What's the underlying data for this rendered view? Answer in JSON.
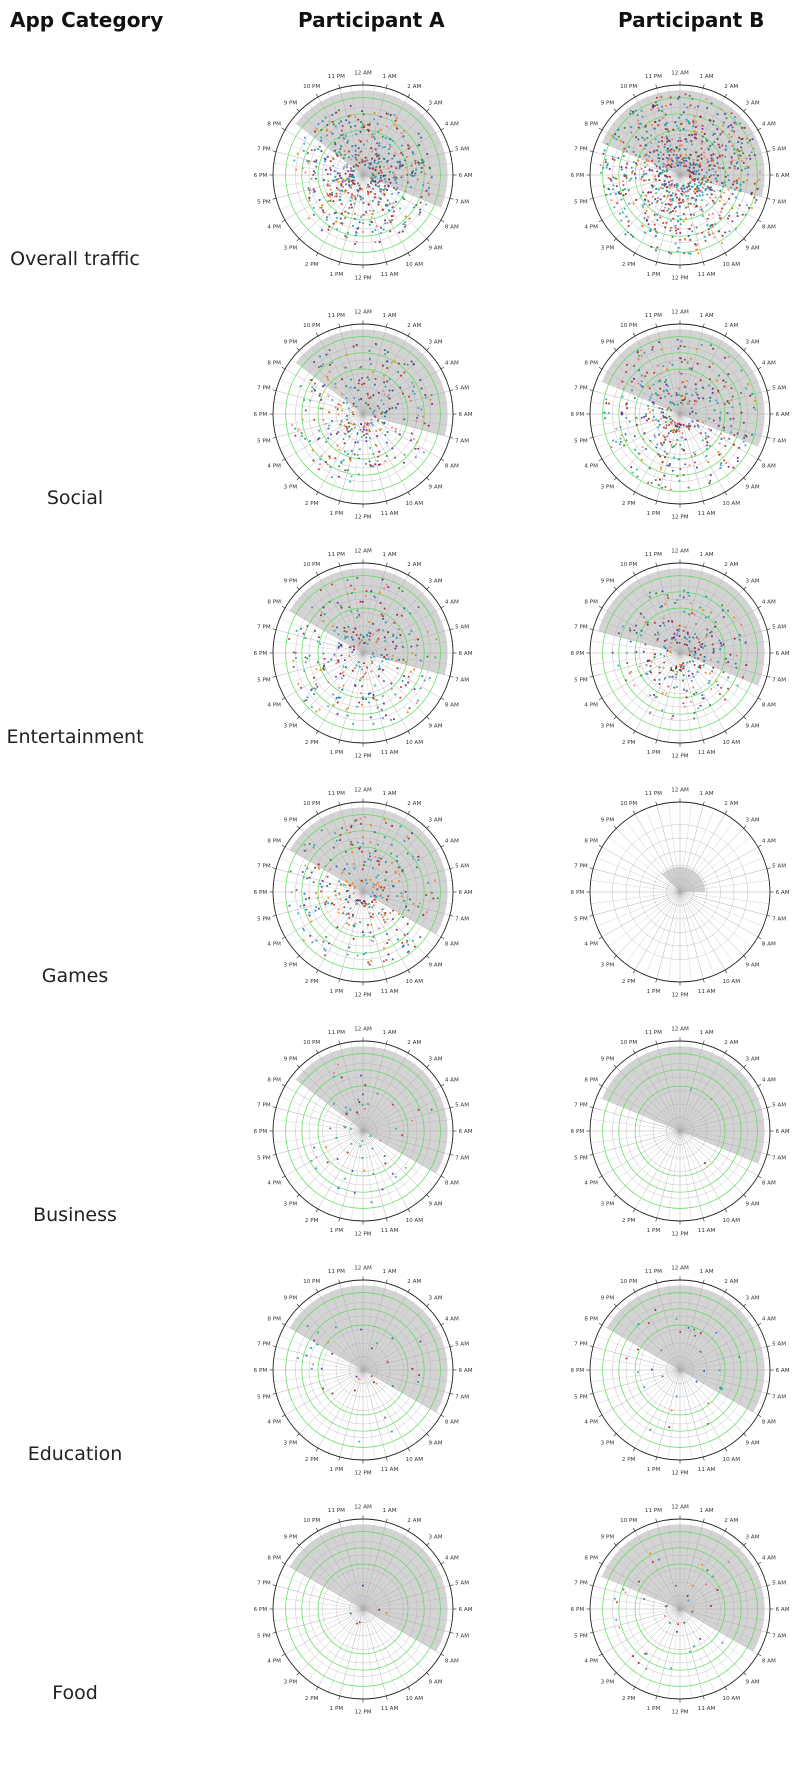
{
  "headers": {
    "category": "App Category",
    "participant_a": "Participant A",
    "participant_b": "Participant B"
  },
  "colors": {
    "grid": "#aaaaaa",
    "ring_green": "#55dd55",
    "shade": "#d3d3d3",
    "outline": "#222222",
    "point_palette": [
      "#1f5fa8",
      "#3a8fd6",
      "#c62828",
      "#8b1a1a",
      "#2e7d32",
      "#00a0a0",
      "#f57c00",
      "#6a1b9a",
      "#e57373",
      "#26a69a"
    ]
  },
  "chart_data": [
    {
      "type": "scatter",
      "subtype": "polar-clock",
      "category": "Overall traffic",
      "participant": "Participant A",
      "angle_ticks": [
        "12 AM",
        "1 AM",
        "2 AM",
        "3 AM",
        "4 AM",
        "5 AM",
        "6 AM",
        "7 AM",
        "8 AM",
        "9 AM",
        "10 AM",
        "11 AM",
        "12 PM",
        "1 PM",
        "2 PM",
        "3 PM",
        "4 PM",
        "5 PM",
        "6 PM",
        "7 PM",
        "8 PM",
        "9 PM",
        "10 PM",
        "11 PM"
      ],
      "shaded_hours": [
        20.5,
        7.5
      ],
      "green_rings": [
        0.5,
        0.68,
        0.86
      ],
      "point_density": 600,
      "point_radius_range": [
        0.1,
        0.78
      ]
    },
    {
      "type": "scatter",
      "subtype": "polar-clock",
      "category": "Overall traffic",
      "participant": "Participant B",
      "angle_ticks": [
        "12 AM",
        "1 AM",
        "2 AM",
        "3 AM",
        "4 AM",
        "5 AM",
        "6 AM",
        "7 AM",
        "8 AM",
        "9 AM",
        "10 AM",
        "11 AM",
        "12 PM",
        "1 PM",
        "2 PM",
        "3 PM",
        "4 PM",
        "5 PM",
        "6 PM",
        "7 PM",
        "8 PM",
        "9 PM",
        "10 PM",
        "11 PM"
      ],
      "shaded_hours": [
        19.5,
        7.0
      ],
      "green_rings": [
        0.5,
        0.68,
        0.86
      ],
      "point_density": 900,
      "point_radius_range": [
        0.1,
        0.9
      ]
    },
    {
      "type": "scatter",
      "subtype": "polar-clock",
      "category": "Social",
      "participant": "Participant A",
      "angle_ticks": [
        "12 AM",
        "1 AM",
        "2 AM",
        "3 AM",
        "4 AM",
        "5 AM",
        "6 AM",
        "7 AM",
        "8 AM",
        "9 AM",
        "10 AM",
        "11 AM",
        "12 PM",
        "1 PM",
        "2 PM",
        "3 PM",
        "4 PM",
        "5 PM",
        "6 PM",
        "7 PM",
        "8 PM",
        "9 PM",
        "10 PM",
        "11 PM"
      ],
      "shaded_hours": [
        20.5,
        7.0
      ],
      "green_rings": [
        0.5,
        0.68,
        0.86
      ],
      "point_density": 320,
      "point_radius_range": [
        0.1,
        0.8
      ]
    },
    {
      "type": "scatter",
      "subtype": "polar-clock",
      "category": "Social",
      "participant": "Participant B",
      "angle_ticks": [
        "12 AM",
        "1 AM",
        "2 AM",
        "3 AM",
        "4 AM",
        "5 AM",
        "6 AM",
        "7 AM",
        "8 AM",
        "9 AM",
        "10 AM",
        "11 AM",
        "12 PM",
        "1 PM",
        "2 PM",
        "3 PM",
        "4 PM",
        "5 PM",
        "6 PM",
        "7 PM",
        "8 PM",
        "9 PM",
        "10 PM",
        "11 PM"
      ],
      "shaded_hours": [
        19.5,
        7.5
      ],
      "green_rings": [
        0.5,
        0.68,
        0.86
      ],
      "point_density": 420,
      "point_radius_range": [
        0.1,
        0.85
      ]
    },
    {
      "type": "scatter",
      "subtype": "polar-clock",
      "category": "Entertainment",
      "participant": "Participant A",
      "angle_ticks": [
        "12 AM",
        "1 AM",
        "2 AM",
        "3 AM",
        "4 AM",
        "5 AM",
        "6 AM",
        "7 AM",
        "8 AM",
        "9 AM",
        "10 AM",
        "11 AM",
        "12 PM",
        "1 PM",
        "2 PM",
        "3 PM",
        "4 PM",
        "5 PM",
        "6 PM",
        "7 PM",
        "8 PM",
        "9 PM",
        "10 PM",
        "11 PM"
      ],
      "shaded_hours": [
        20.0,
        7.0
      ],
      "green_rings": [
        0.5,
        0.68,
        0.86
      ],
      "point_density": 300,
      "point_radius_range": [
        0.1,
        0.85
      ]
    },
    {
      "type": "scatter",
      "subtype": "polar-clock",
      "category": "Entertainment",
      "participant": "Participant B",
      "angle_ticks": [
        "12 AM",
        "1 AM",
        "2 AM",
        "3 AM",
        "4 AM",
        "5 AM",
        "6 AM",
        "7 AM",
        "8 AM",
        "9 AM",
        "10 AM",
        "11 AM",
        "12 PM",
        "1 PM",
        "2 PM",
        "3 PM",
        "4 PM",
        "5 PM",
        "6 PM",
        "7 PM",
        "8 PM",
        "9 PM",
        "10 PM",
        "11 PM"
      ],
      "shaded_hours": [
        19.0,
        7.5
      ],
      "green_rings": [
        0.5,
        0.68,
        0.86
      ],
      "point_density": 280,
      "point_radius_range": [
        0.1,
        0.75
      ]
    },
    {
      "type": "scatter",
      "subtype": "polar-clock",
      "category": "Games",
      "participant": "Participant A",
      "angle_ticks": [
        "12 AM",
        "1 AM",
        "2 AM",
        "3 AM",
        "4 AM",
        "5 AM",
        "6 AM",
        "7 AM",
        "8 AM",
        "9 AM",
        "10 AM",
        "11 AM",
        "12 PM",
        "1 PM",
        "2 PM",
        "3 PM",
        "4 PM",
        "5 PM",
        "6 PM",
        "7 PM",
        "8 PM",
        "9 PM",
        "10 PM",
        "11 PM"
      ],
      "shaded_hours": [
        20.0,
        8.0
      ],
      "green_rings": [
        0.5,
        0.68,
        0.86
      ],
      "point_density": 330,
      "point_radius_range": [
        0.1,
        0.85
      ]
    },
    {
      "type": "scatter",
      "subtype": "polar-clock",
      "category": "Games",
      "participant": "Participant B",
      "angle_ticks": [
        "12 AM",
        "1 AM",
        "2 AM",
        "3 AM",
        "4 AM",
        "5 AM",
        "6 AM",
        "7 AM",
        "8 AM",
        "9 AM",
        "10 AM",
        "11 AM",
        "12 PM",
        "1 PM",
        "2 PM",
        "3 PM",
        "4 PM",
        "5 PM",
        "6 PM",
        "7 PM",
        "8 PM",
        "9 PM",
        "10 PM",
        "11 PM"
      ],
      "shaded_hours": [
        21.0,
        6.0
      ],
      "shaded_radius": 0.28,
      "green_rings": [],
      "point_density": 0,
      "point_radius_range": [
        0.1,
        0.3
      ]
    },
    {
      "type": "scatter",
      "subtype": "polar-clock",
      "category": "Business",
      "participant": "Participant A",
      "angle_ticks": [
        "12 AM",
        "1 AM",
        "2 AM",
        "3 AM",
        "4 AM",
        "5 AM",
        "6 AM",
        "7 AM",
        "8 AM",
        "9 AM",
        "10 AM",
        "11 AM",
        "12 PM",
        "1 PM",
        "2 PM",
        "3 PM",
        "4 PM",
        "5 PM",
        "6 PM",
        "7 PM",
        "8 PM",
        "9 PM",
        "10 PM",
        "11 PM"
      ],
      "shaded_hours": [
        20.5,
        8.0
      ],
      "green_rings": [
        0.5,
        0.68,
        0.86
      ],
      "point_density": 60,
      "point_radius_range": [
        0.1,
        0.8
      ]
    },
    {
      "type": "scatter",
      "subtype": "polar-clock",
      "category": "Business",
      "participant": "Participant B",
      "angle_ticks": [
        "12 AM",
        "1 AM",
        "2 AM",
        "3 AM",
        "4 AM",
        "5 AM",
        "6 AM",
        "7 AM",
        "8 AM",
        "9 AM",
        "10 AM",
        "11 AM",
        "12 PM",
        "1 PM",
        "2 PM",
        "3 PM",
        "4 PM",
        "5 PM",
        "6 PM",
        "7 PM",
        "8 PM",
        "9 PM",
        "10 PM",
        "11 PM"
      ],
      "shaded_hours": [
        19.5,
        7.5
      ],
      "green_rings": [
        0.5,
        0.68,
        0.86
      ],
      "point_density": 3,
      "point_radius_range": [
        0.3,
        0.8
      ]
    },
    {
      "type": "scatter",
      "subtype": "polar-clock",
      "category": "Education",
      "participant": "Participant A",
      "angle_ticks": [
        "12 AM",
        "1 AM",
        "2 AM",
        "3 AM",
        "4 AM",
        "5 AM",
        "6 AM",
        "7 AM",
        "8 AM",
        "9 AM",
        "10 AM",
        "11 AM",
        "12 PM",
        "1 PM",
        "2 PM",
        "3 PM",
        "4 PM",
        "5 PM",
        "6 PM",
        "7 PM",
        "8 PM",
        "9 PM",
        "10 PM",
        "11 PM"
      ],
      "shaded_hours": [
        20.0,
        8.0
      ],
      "green_rings": [
        0.5,
        0.68,
        0.86
      ],
      "point_density": 35,
      "point_radius_range": [
        0.1,
        0.8
      ]
    },
    {
      "type": "scatter",
      "subtype": "polar-clock",
      "category": "Education",
      "participant": "Participant B",
      "angle_ticks": [
        "12 AM",
        "1 AM",
        "2 AM",
        "3 AM",
        "4 AM",
        "5 AM",
        "6 AM",
        "7 AM",
        "8 AM",
        "9 AM",
        "10 AM",
        "11 AM",
        "12 PM",
        "1 PM",
        "2 PM",
        "3 PM",
        "4 PM",
        "5 PM",
        "6 PM",
        "7 PM",
        "8 PM",
        "9 PM",
        "10 PM",
        "11 PM"
      ],
      "shaded_hours": [
        20.0,
        8.0
      ],
      "green_rings": [
        0.5,
        0.68,
        0.86
      ],
      "point_density": 30,
      "point_radius_range": [
        0.1,
        0.75
      ]
    },
    {
      "type": "scatter",
      "subtype": "polar-clock",
      "category": "Food",
      "participant": "Participant A",
      "angle_ticks": [
        "12 AM",
        "1 AM",
        "2 AM",
        "3 AM",
        "4 AM",
        "5 AM",
        "6 AM",
        "7 AM",
        "8 AM",
        "9 AM",
        "10 AM",
        "11 AM",
        "12 PM",
        "1 PM",
        "2 PM",
        "3 PM",
        "4 PM",
        "5 PM",
        "6 PM",
        "7 PM",
        "8 PM",
        "9 PM",
        "10 PM",
        "11 PM"
      ],
      "shaded_hours": [
        20.0,
        8.0
      ],
      "green_rings": [
        0.5,
        0.68,
        0.86
      ],
      "point_density": 6,
      "point_radius_range": [
        0.1,
        0.4
      ]
    },
    {
      "type": "scatter",
      "subtype": "polar-clock",
      "category": "Food",
      "participant": "Participant B",
      "angle_ticks": [
        "12 AM",
        "1 AM",
        "2 AM",
        "3 AM",
        "4 AM",
        "5 AM",
        "6 AM",
        "7 AM",
        "8 AM",
        "9 AM",
        "10 AM",
        "11 AM",
        "12 PM",
        "1 PM",
        "2 PM",
        "3 PM",
        "4 PM",
        "5 PM",
        "6 PM",
        "7 PM",
        "8 PM",
        "9 PM",
        "10 PM",
        "11 PM"
      ],
      "shaded_hours": [
        19.5,
        8.0
      ],
      "green_rings": [
        0.5,
        0.68,
        0.86
      ],
      "point_density": 40,
      "point_radius_range": [
        0.1,
        0.8
      ]
    }
  ],
  "rows": [
    {
      "label": "Overall traffic"
    },
    {
      "label": "Social"
    },
    {
      "label": "Entertainment"
    },
    {
      "label": "Games"
    },
    {
      "label": "Business"
    },
    {
      "label": "Education"
    },
    {
      "label": "Food"
    }
  ]
}
